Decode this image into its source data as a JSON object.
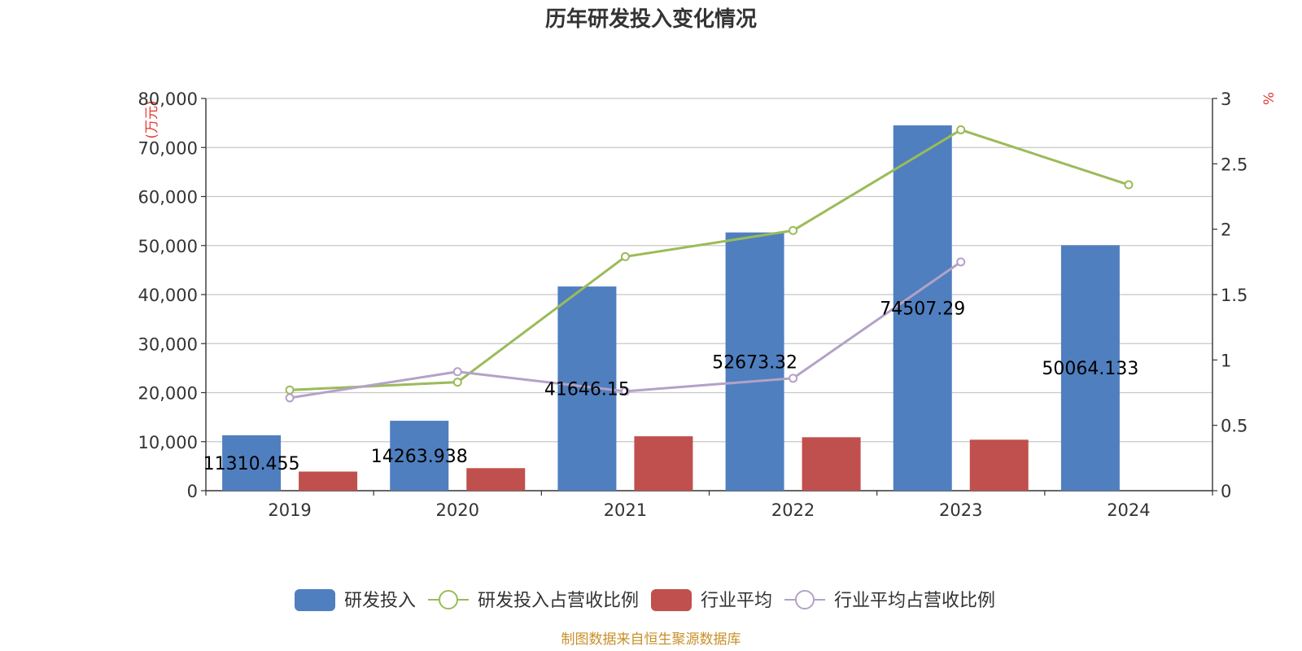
{
  "title": "历年研发投入变化情况",
  "source": "制图数据来自恒生聚源数据库",
  "chart_data": {
    "type": "bar",
    "title": "历年研发投入变化情况",
    "categories": [
      "2019",
      "2020",
      "2021",
      "2022",
      "2023",
      "2024"
    ],
    "y_left": {
      "unit": "(万元)",
      "ylim": [
        0,
        80000
      ],
      "ticks": [
        "0",
        "10,000",
        "20,000",
        "30,000",
        "40,000",
        "50,000",
        "60,000",
        "70,000",
        "80,000"
      ]
    },
    "y_right": {
      "unit": "%",
      "ylim": [
        0,
        3
      ],
      "ticks": [
        "0",
        "0.5",
        "1",
        "1.5",
        "2",
        "2.5",
        "3"
      ]
    },
    "series": [
      {
        "name": "研发投入",
        "type": "bar",
        "axis": "left",
        "color": "#4f7fbf",
        "values": [
          11310.455,
          14263.938,
          41646.15,
          52673.32,
          74507.29,
          50064.133
        ],
        "labels": [
          "11310.455",
          "14263.938",
          "41646.15",
          "52673.32",
          "74507.29",
          "50064.133"
        ]
      },
      {
        "name": "研发投入占营收比例",
        "type": "line",
        "axis": "right",
        "color": "#9bbb59",
        "values": [
          0.77,
          0.83,
          1.79,
          1.99,
          2.76,
          2.34
        ]
      },
      {
        "name": "行业平均",
        "type": "bar",
        "axis": "left",
        "color": "#c0504d",
        "values": [
          3900,
          4600,
          11100,
          10900,
          10400,
          null
        ]
      },
      {
        "name": "行业平均占营收比例",
        "type": "line",
        "axis": "right",
        "color": "#b3a2c7",
        "values": [
          0.71,
          0.91,
          0.76,
          0.86,
          1.75,
          null
        ]
      }
    ],
    "grid": true,
    "legend_position": "bottom"
  }
}
